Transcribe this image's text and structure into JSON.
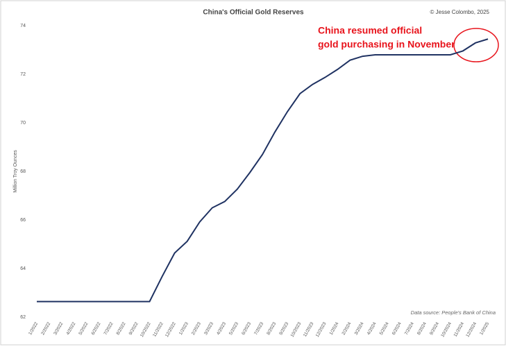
{
  "chart_data": {
    "type": "line",
    "title": "China's Official Gold Reserves",
    "credit": "© Jesse Colombo, 2025",
    "y_label": "Million Troy Ounces",
    "source": "Data source: People's Bank of China",
    "annotation": [
      "China resumed official",
      "gold purchasing in November"
    ],
    "categories": [
      "1/2022",
      "2/2022",
      "3/2022",
      "4/2022",
      "5/2022",
      "6/2022",
      "7/2022",
      "8/2022",
      "9/2022",
      "10/2022",
      "11/2022",
      "12/2022",
      "1/2023",
      "2/2023",
      "3/2023",
      "4/2023",
      "5/2023",
      "6/2023",
      "7/2023",
      "8/2023",
      "9/2023",
      "10/2023",
      "11/2023",
      "12/2023",
      "1/2024",
      "2/2024",
      "3/2024",
      "4/2024",
      "5/2024",
      "6/2024",
      "7/2024",
      "8/2024",
      "9/2024",
      "10/2024",
      "11/2024",
      "12/2024",
      "1/2025"
    ],
    "series": [
      {
        "name": "Gold reserves",
        "color": "#1f3262",
        "values": [
          62.64,
          62.64,
          62.64,
          62.64,
          62.64,
          62.64,
          62.64,
          62.64,
          62.64,
          62.64,
          63.67,
          64.64,
          65.12,
          65.92,
          66.5,
          66.76,
          67.27,
          67.95,
          68.69,
          69.62,
          70.46,
          71.2,
          71.58,
          71.87,
          72.2,
          72.58,
          72.74,
          72.8,
          72.8,
          72.8,
          72.8,
          72.8,
          72.8,
          72.8,
          72.96,
          73.29,
          73.45
        ]
      }
    ],
    "ylim": [
      62,
      74
    ],
    "yticks": [
      62,
      64,
      66,
      68,
      70,
      72,
      74
    ],
    "grid": false
  }
}
